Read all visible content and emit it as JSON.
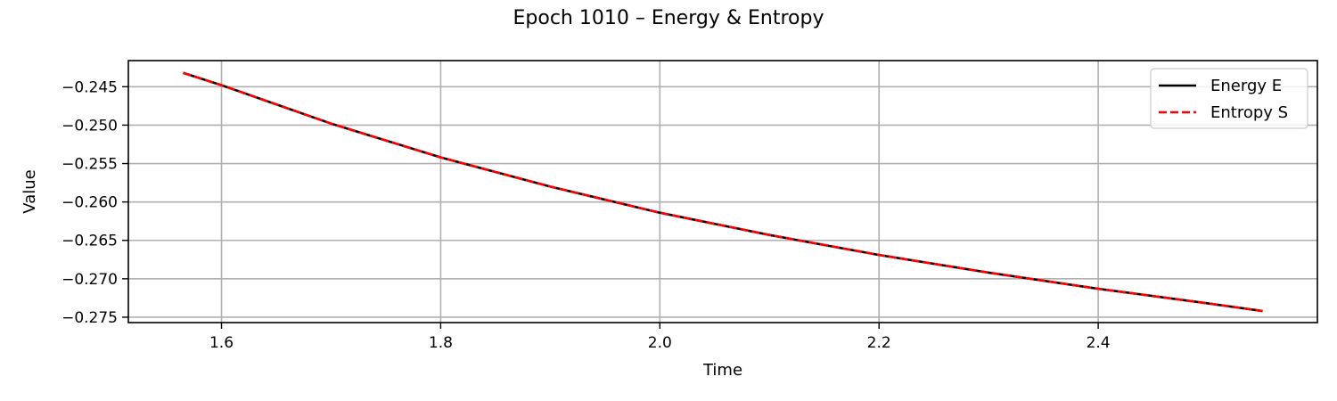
{
  "chart_data": {
    "type": "line",
    "title": "Epoch 1010 – Energy & Entropy",
    "xlabel": "Time",
    "ylabel": "Value",
    "xlim": [
      1.515,
      2.6
    ],
    "ylim": [
      -0.2757,
      -0.2416
    ],
    "xticks": [
      1.6,
      1.8,
      2.0,
      2.2,
      2.4
    ],
    "xtick_labels": [
      "1.6",
      "1.8",
      "2.0",
      "2.2",
      "2.4"
    ],
    "yticks": [
      -0.245,
      -0.25,
      -0.255,
      -0.26,
      -0.265,
      -0.27,
      -0.275
    ],
    "ytick_labels": [
      "−0.245",
      "−0.250",
      "−0.255",
      "−0.260",
      "−0.265",
      "−0.270",
      "−0.275"
    ],
    "grid": true,
    "legend_position": "top-right",
    "x": [
      1.565,
      1.6,
      1.7,
      1.8,
      1.9,
      2.0,
      2.1,
      2.2,
      2.3,
      2.4,
      2.5,
      2.55
    ],
    "series": [
      {
        "name": "Energy E",
        "color": "#000000",
        "style": "solid",
        "values": [
          -0.2432,
          -0.2448,
          -0.2498,
          -0.2542,
          -0.258,
          -0.2614,
          -0.2643,
          -0.2669,
          -0.2692,
          -0.2713,
          -0.2732,
          -0.2742
        ]
      },
      {
        "name": "Entropy S",
        "color": "#ff0000",
        "style": "dashed",
        "values": [
          -0.2432,
          -0.2448,
          -0.2498,
          -0.2542,
          -0.258,
          -0.2614,
          -0.2643,
          -0.2669,
          -0.2692,
          -0.2713,
          -0.2732,
          -0.2742
        ]
      }
    ]
  }
}
